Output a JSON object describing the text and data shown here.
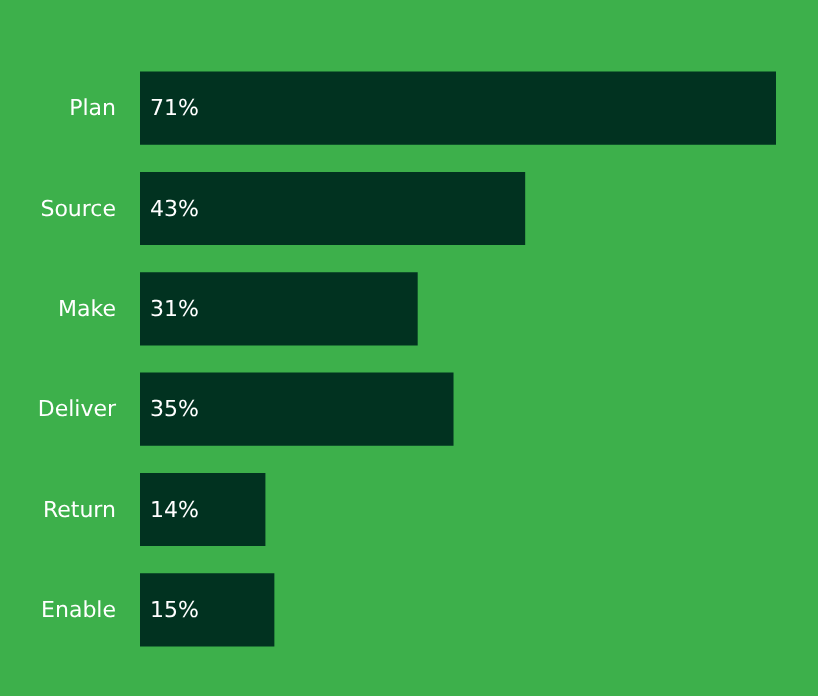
{
  "chart_data": {
    "type": "bar",
    "orientation": "horizontal",
    "categories": [
      "Plan",
      "Source",
      "Make",
      "Deliver",
      "Return",
      "Enable"
    ],
    "values": [
      71,
      43,
      31,
      35,
      14,
      15
    ],
    "color": "#013220",
    "value_labels": [
      "71%",
      "43%",
      "31%",
      "35%",
      "14%",
      "15%"
    ]
  }
}
